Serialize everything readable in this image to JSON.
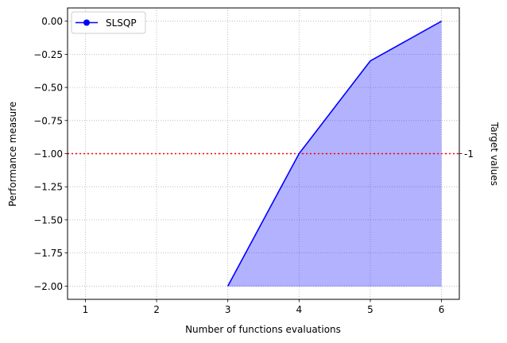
{
  "chart_data": {
    "type": "line",
    "title": "",
    "xlabel": "Number of functions evaluations",
    "ylabel": "Performance measure",
    "right_label": "Target values",
    "x": [
      3,
      4,
      5,
      6
    ],
    "series": [
      {
        "name": "SLSQP",
        "values": [
          -2.0,
          -1.0,
          -0.3,
          0.0
        ],
        "color": "#0000ff",
        "fill_color": "#0000ff",
        "fill_opacity": 0.3,
        "fill_baseline": -2.0
      }
    ],
    "target": {
      "value": -1.0,
      "label": "-1",
      "color": "#ff0000",
      "style": "dotted"
    },
    "xlim": [
      0.75,
      6.25
    ],
    "ylim": [
      -2.1,
      0.1
    ],
    "xticks": [
      1,
      2,
      3,
      4,
      5,
      6
    ],
    "xtick_labels": [
      "1",
      "2",
      "3",
      "4",
      "5",
      "6"
    ],
    "yticks": [
      0.0,
      -0.25,
      -0.5,
      -0.75,
      -1.0,
      -1.25,
      -1.5,
      -1.75,
      -2.0
    ],
    "ytick_labels": [
      "0.00",
      "−0.25",
      "−0.50",
      "−0.75",
      "−1.00",
      "−1.25",
      "−1.50",
      "−1.75",
      "−2.00"
    ],
    "grid": true,
    "legend_position": "top-left"
  }
}
